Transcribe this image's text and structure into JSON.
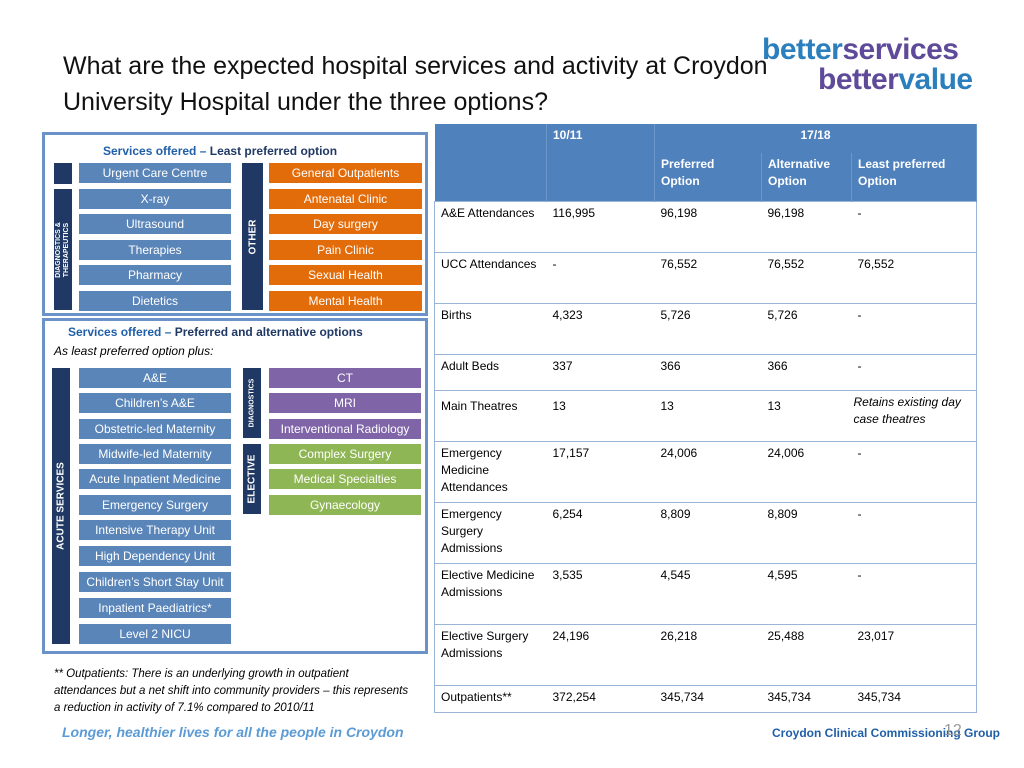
{
  "title": "What are the expected hospital services and activity at Croydon University Hospital under the three options?",
  "logo": {
    "line1_a": "better",
    "line1_b": "services",
    "line2_a": "better",
    "line2_b": "value"
  },
  "panel1": {
    "heading_a": "Services offered – ",
    "heading_b": "Least preferred option",
    "left_items": [
      "Urgent Care Centre",
      "X-ray",
      "Ultrasound",
      "Therapies",
      "Pharmacy",
      "Dietetics"
    ],
    "left_bar_label": "DIAGNOSTICS & THERAPEUTICS",
    "right_bar_label": "OTHER",
    "right_items": [
      "General Outpatients",
      "Antenatal Clinic",
      "Day surgery",
      "Pain Clinic",
      "Sexual Health",
      "Mental Health"
    ]
  },
  "panel2": {
    "heading_a": "Services offered – ",
    "heading_b": "Preferred and alternative options",
    "subheading": "As least preferred option plus:",
    "left_bar_label": "ACUTE SERVICES",
    "left_items": [
      "A&E",
      "Children’s A&E",
      "Obstetric-led Maternity",
      "Midwife-led Maternity",
      "Acute Inpatient Medicine",
      "Emergency Surgery",
      "Intensive Therapy Unit",
      "High Dependency Unit",
      "Children’s Short Stay Unit",
      "Inpatient Paediatrics*",
      "Level 2 NICU"
    ],
    "diag_bar_label": "DIAGNOSTICS",
    "diag_items": [
      "CT",
      "MRI",
      "Interventional Radiology"
    ],
    "elective_bar_label": "ELECTIVE",
    "elective_items": [
      "Complex Surgery",
      "Medical Specialties",
      "Gynaecology"
    ]
  },
  "table": {
    "header1": [
      "",
      "10/11",
      "17/18"
    ],
    "header2": [
      "",
      "",
      "Preferred Option",
      "Alternative Option",
      "Least preferred Option"
    ],
    "rows": [
      [
        "A&E Attendances",
        "116,995",
        "96,198",
        "96,198",
        "-"
      ],
      [
        "UCC Attendances",
        "-",
        "76,552",
        "76,552",
        "76,552"
      ],
      [
        "Births",
        "4,323",
        "5,726",
        "5,726",
        "-"
      ],
      [
        "Adult Beds",
        "337",
        "366",
        "366",
        "-"
      ],
      [
        "Main Theatres",
        "13",
        "13",
        "13",
        "Retains existing day case theatres"
      ],
      [
        "Emergency Medicine Attendances",
        "17,157",
        "24,006",
        "24,006",
        "-"
      ],
      [
        "Emergency Surgery Admissions",
        "6,254",
        "8,809",
        "8,809",
        "-"
      ],
      [
        "Elective Medicine Admissions",
        "3,535",
        "4,545",
        "4,595",
        "-"
      ],
      [
        "Elective Surgery Admissions",
        "24,196",
        "26,218",
        "25,488",
        "23,017"
      ],
      [
        "Outpatients**",
        "372,254",
        "345,734",
        "345,734",
        "345,734"
      ]
    ]
  },
  "footnote": "** Outpatients: There is an underlying growth in outpatient attendances but a net shift into community providers – this represents a reduction in activity of 7.1% compared to 2010/11",
  "tagline": "Longer, healthier lives for all the people in Croydon",
  "ccg": "Croydon Clinical Commissioning Group",
  "page_number": "12"
}
